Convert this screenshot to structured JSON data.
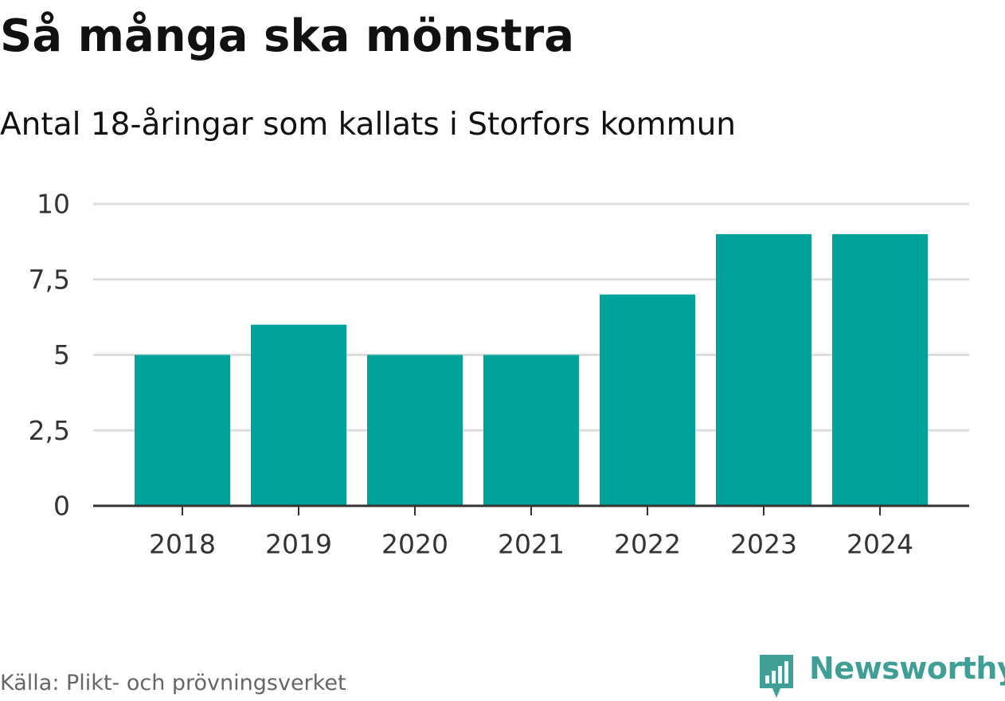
{
  "header": {
    "title": "Så många ska mönstra",
    "subtitle": "Antal 18-åringar som kallats i Storfors kommun"
  },
  "footer": {
    "source": "Källa: Plikt- och prövningsverket",
    "brand": "Newsworthy"
  },
  "colors": {
    "bar": "#00a39a",
    "grid": "#dddddd",
    "axis": "#333333",
    "brand": "#3f9f96"
  },
  "chart_data": {
    "type": "bar",
    "title": "Så många ska mönstra",
    "subtitle": "Antal 18-åringar som kallats i Storfors kommun",
    "categories": [
      "2018",
      "2019",
      "2020",
      "2021",
      "2022",
      "2023",
      "2024"
    ],
    "values": [
      5,
      6,
      5,
      5,
      7,
      9,
      9
    ],
    "xlabel": "",
    "ylabel": "",
    "ylim": [
      0,
      10
    ],
    "yticks": [
      0,
      2.5,
      5,
      7.5,
      10
    ],
    "ytick_labels": [
      "0",
      "2,5",
      "5",
      "7,5",
      "10"
    ],
    "grid": true,
    "legend": "none"
  }
}
